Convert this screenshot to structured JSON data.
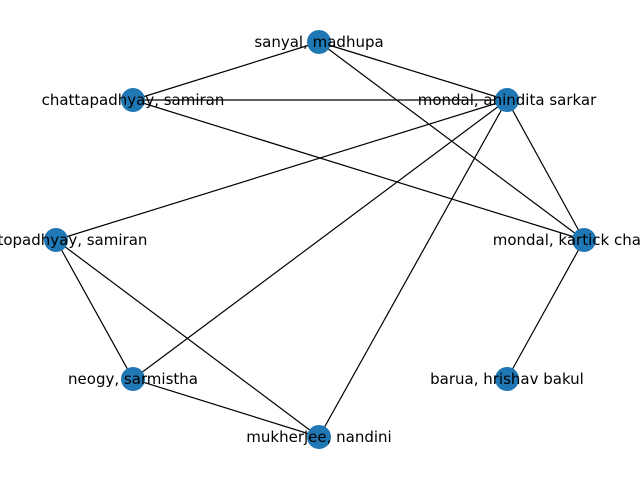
{
  "graph": {
    "node_color": "#1f77b4",
    "edge_color": "#000000",
    "nodes": [
      {
        "id": "sanyal",
        "label": "sanyal, madhupa"
      },
      {
        "id": "mondal_a",
        "label": "mondal, anindita sarkar"
      },
      {
        "id": "chatt",
        "label": "chattapadhyay, samiran"
      },
      {
        "id": "chatt2",
        "label": "chattopadhyay, samiran"
      },
      {
        "id": "mondal_k",
        "label": "mondal, kartick chandra"
      },
      {
        "id": "neogy",
        "label": "neogy, sarmistha"
      },
      {
        "id": "barua",
        "label": "barua, hrishav bakul"
      },
      {
        "id": "mukherjee",
        "label": "mukherjee, nandini"
      }
    ],
    "edges": [
      [
        "sanyal",
        "chatt"
      ],
      [
        "sanyal",
        "mondal_a"
      ],
      [
        "sanyal",
        "mondal_k"
      ],
      [
        "chatt",
        "mondal_a"
      ],
      [
        "chatt",
        "mondal_k"
      ],
      [
        "mondal_a",
        "chatt2"
      ],
      [
        "mondal_a",
        "neogy"
      ],
      [
        "mondal_a",
        "mukherjee"
      ],
      [
        "mondal_a",
        "mondal_k"
      ],
      [
        "mondal_k",
        "barua"
      ],
      [
        "chatt2",
        "neogy"
      ],
      [
        "chatt2",
        "mukherjee"
      ],
      [
        "neogy",
        "mukherjee"
      ]
    ]
  }
}
